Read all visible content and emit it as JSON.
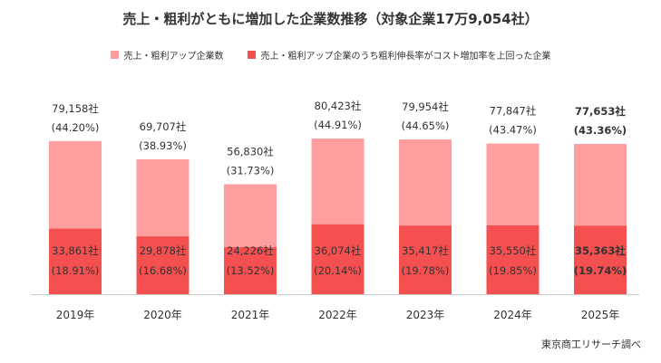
{
  "title": "売上・粗利がともに増加した企業数推移（対象企業17万9,054社）",
  "legend": [
    {
      "label": "売上・粗利アップ企業数",
      "color": "#ff9e9e"
    },
    {
      "label": "売上・粗利アップ企業のうち粗利伸長率がコスト増加率を上回った企業",
      "color": "#f45050"
    }
  ],
  "source": "東京商工リサーチ調べ",
  "chart_data": {
    "type": "bar",
    "stacked_overlay": true,
    "categories": [
      "2019年",
      "2020年",
      "2021年",
      "2022年",
      "2023年",
      "2024年",
      "2025年"
    ],
    "series": [
      {
        "name": "売上・粗利アップ企業数",
        "values": [
          79158,
          69707,
          56830,
          80423,
          79954,
          77847,
          77653
        ],
        "count_labels": [
          "79,158社",
          "69,707社",
          "56,830社",
          "80,423社",
          "79,954社",
          "77,847社",
          "77,653社"
        ],
        "pct_labels": [
          "(44.20%)",
          "(38.93%)",
          "(31.73%)",
          "(44.91%)",
          "(44.65%)",
          "(43.47%)",
          "(43.36%)"
        ],
        "color": "#ff9e9e"
      },
      {
        "name": "売上・粗利アップ企業のうち粗利伸長率がコスト増加率を上回った企業",
        "values": [
          33861,
          29878,
          24226,
          36074,
          35417,
          35550,
          35363
        ],
        "count_labels": [
          "33,861社",
          "29,878社",
          "24,226社",
          "36,074社",
          "35,417社",
          "35,550社",
          "35,363社"
        ],
        "pct_labels": [
          "(18.91%)",
          "(16.68%)",
          "(13.52%)",
          "(20.14%)",
          "(19.78%)",
          "(19.85%)",
          "(19.74%)"
        ],
        "color": "#f45050"
      }
    ],
    "highlight_index": 6,
    "ylim": [
      0,
      100000
    ],
    "grid": false
  }
}
